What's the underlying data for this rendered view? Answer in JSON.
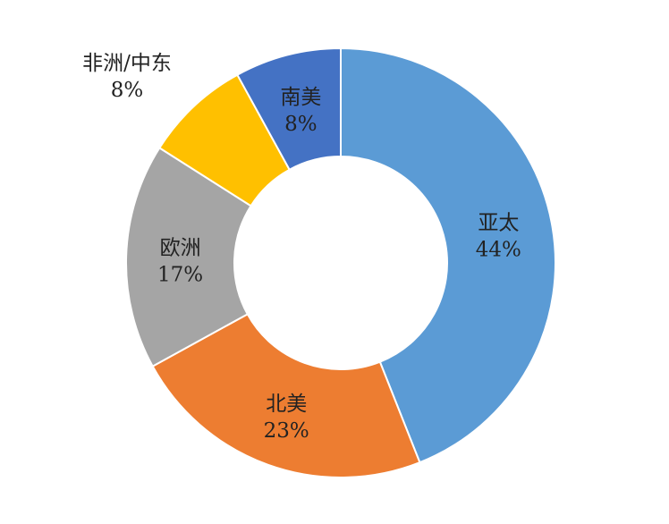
{
  "chart_data": {
    "type": "pie",
    "donut": true,
    "title": "",
    "start": "top",
    "direction": "clockwise",
    "slices": [
      {
        "label": "亚太",
        "value": 44,
        "text": "44%",
        "color": "#5b9bd5",
        "label_position": "inside"
      },
      {
        "label": "北美",
        "value": 23,
        "text": "23%",
        "color": "#ed7d31",
        "label_position": "inside"
      },
      {
        "label": "欧洲",
        "value": 17,
        "text": "17%",
        "color": "#a5a5a5",
        "label_position": "inside"
      },
      {
        "label": "非洲/中东",
        "value": 8,
        "text": "8%",
        "color": "#ffc000",
        "label_position": "outside"
      },
      {
        "label": "南美",
        "value": 8,
        "text": "8%",
        "color": "#4472c4",
        "label_position": "inside"
      }
    ]
  }
}
